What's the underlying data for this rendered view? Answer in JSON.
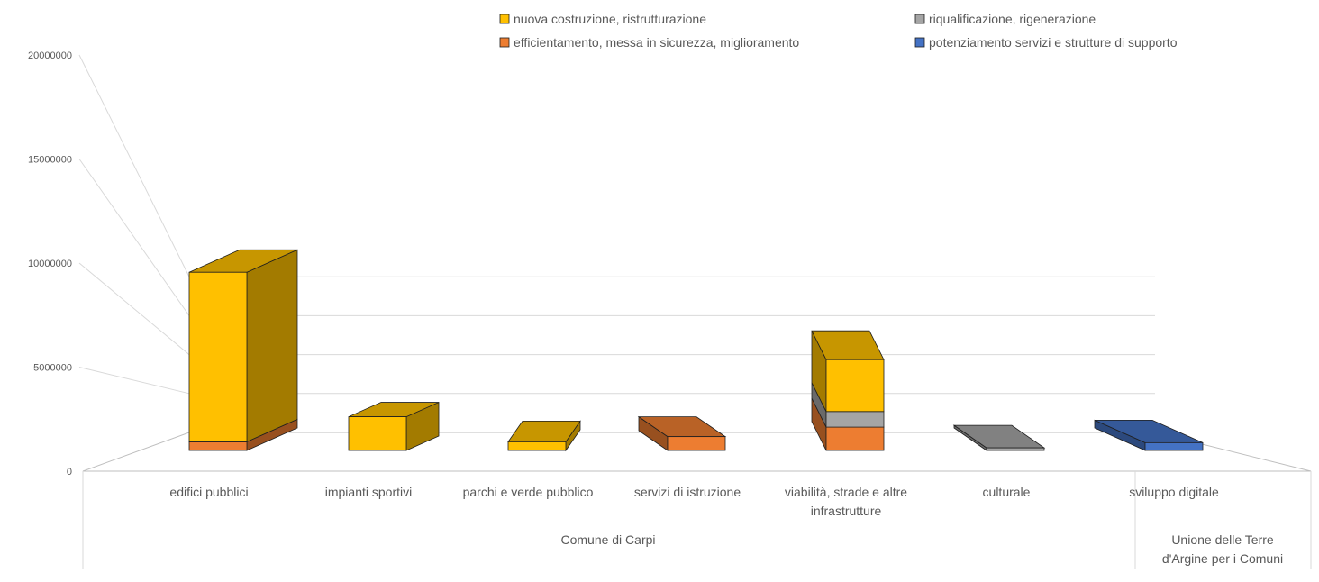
{
  "chart_data": {
    "type": "bar",
    "stacked": true,
    "three_d": true,
    "y_ticks": [
      "0",
      "5000000",
      "10000000",
      "15000000",
      "20000000"
    ],
    "ylim": [
      0,
      20000000
    ],
    "grid": true,
    "legend_position": "top",
    "categories": [
      {
        "label": "edifici pubblici",
        "group": "Comune di Carpi"
      },
      {
        "label": "impianti sportivi",
        "group": "Comune di Carpi"
      },
      {
        "label": "parchi e verde pubblico",
        "group": "Comune di Carpi"
      },
      {
        "label": "servizi di istruzione",
        "group": "Comune di Carpi"
      },
      {
        "label": "viabilità, strade e altre infrastrutture",
        "group": "Comune di Carpi"
      },
      {
        "label": "culturale",
        "group": "Comune di Carpi"
      },
      {
        "label": "sviluppo digitale",
        "group": "Unione delle Terre d'Argine per i Comuni"
      }
    ],
    "category_lines": [
      [
        "edifici pubblici"
      ],
      [
        "impianti sportivi"
      ],
      [
        "parchi e verde pubblico"
      ],
      [
        "servizi di istruzione"
      ],
      [
        "viabilità, strade e altre",
        "infrastrutture"
      ],
      [
        "culturale"
      ],
      [
        "sviluppo digitale"
      ]
    ],
    "groups": [
      {
        "label_lines": [
          "Comune di Carpi"
        ],
        "span": [
          0,
          5
        ]
      },
      {
        "label_lines": [
          "Unione delle Terre",
          "d'Argine per i Comuni"
        ],
        "span": [
          6,
          6
        ]
      }
    ],
    "series": [
      {
        "name": "efficientamento, messa in sicurezza, miglioramento",
        "color": "#ED7D31",
        "values": [
          1000000,
          0,
          0,
          1600000,
          2700000,
          0,
          0
        ]
      },
      {
        "name": "riqualificazione, rigenerazione",
        "color": "#A5A5A5",
        "values": [
          0,
          0,
          0,
          0,
          1800000,
          300000,
          0
        ]
      },
      {
        "name": "potenziamento servizi e strutture di supporto",
        "color": "#4472C4",
        "values": [
          0,
          0,
          0,
          0,
          0,
          0,
          900000
        ]
      },
      {
        "name": "nuova costruzione, ristrutturazione",
        "color": "#FFC000",
        "values": [
          19600000,
          3900000,
          1000000,
          0,
          6000000,
          0,
          0
        ]
      }
    ],
    "legend_order": [
      3,
      1,
      0,
      2
    ]
  }
}
